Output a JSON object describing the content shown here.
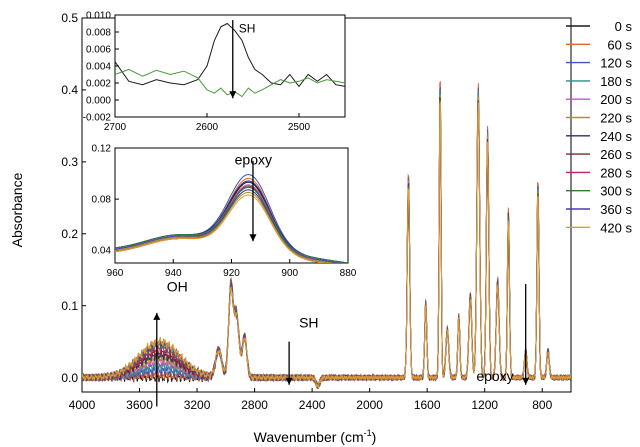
{
  "chart_data": [
    {
      "id": "main",
      "type": "line",
      "xlabel": "Wavenumber (cm",
      "xlabel_sup": "-1",
      "xlabel_close": ")",
      "ylabel": "Absorbance",
      "xlim": [
        4000,
        600
      ],
      "ylim": [
        -0.02,
        0.5
      ],
      "x_reversed": true,
      "x_ticks": [
        4000,
        3600,
        3200,
        2800,
        2400,
        2000,
        1600,
        1200,
        800
      ],
      "x_tick_labels": [
        "4000",
        "3600",
        "3200",
        "2800",
        "2400",
        "2000",
        "1600",
        "1200",
        "800"
      ],
      "y_ticks": [
        0.0,
        0.1,
        0.2,
        0.3,
        0.4,
        0.5
      ],
      "y_tick_labels": [
        "0.0",
        "0.1",
        "0.2",
        "0.3",
        "0.4",
        "0.5"
      ],
      "grid": false,
      "legend_position": "right",
      "series": [
        {
          "name": "0 s",
          "color": "#1a1a1a",
          "oh": 0.0,
          "scale": 0.93
        },
        {
          "name": "60 s",
          "color": "#e2662c",
          "oh": 0.004,
          "scale": 1.0
        },
        {
          "name": "120 s",
          "color": "#3a55c8",
          "oh": 0.01,
          "scale": 0.98
        },
        {
          "name": "180 s",
          "color": "#2a8f87",
          "oh": 0.016,
          "scale": 0.97
        },
        {
          "name": "200 s",
          "color": "#d24fc4",
          "oh": 0.022,
          "scale": 0.96
        },
        {
          "name": "220 s",
          "color": "#a39a1f",
          "oh": 0.027,
          "scale": 0.96
        },
        {
          "name": "240 s",
          "color": "#2b2f6b",
          "oh": 0.031,
          "scale": 0.95
        },
        {
          "name": "260 s",
          "color": "#7a2a2a",
          "oh": 0.035,
          "scale": 0.95
        },
        {
          "name": "280 s",
          "color": "#c81f6e",
          "oh": 0.04,
          "scale": 0.94
        },
        {
          "name": "300 s",
          "color": "#2e7d32",
          "oh": 0.045,
          "scale": 0.94
        },
        {
          "name": "360 s",
          "color": "#4a3cb0",
          "oh": 0.048,
          "scale": 0.93
        },
        {
          "name": "420 s",
          "color": "#e39b2b",
          "oh": 0.05,
          "scale": 0.93
        }
      ],
      "peaks": [
        {
          "x": 3460,
          "y": 0.0,
          "w": 260
        },
        {
          "x": 3050,
          "y": 0.04,
          "w": 30
        },
        {
          "x": 2965,
          "y": 0.13,
          "w": 22
        },
        {
          "x": 2925,
          "y": 0.09,
          "w": 24
        },
        {
          "x": 2870,
          "y": 0.06,
          "w": 22
        },
        {
          "x": 1730,
          "y": 0.29,
          "w": 12
        },
        {
          "x": 1610,
          "y": 0.11,
          "w": 10
        },
        {
          "x": 1510,
          "y": 0.43,
          "w": 9
        },
        {
          "x": 1460,
          "y": 0.07,
          "w": 14
        },
        {
          "x": 1380,
          "y": 0.09,
          "w": 10
        },
        {
          "x": 1300,
          "y": 0.12,
          "w": 14
        },
        {
          "x": 1245,
          "y": 0.41,
          "w": 14
        },
        {
          "x": 1180,
          "y": 0.35,
          "w": 12
        },
        {
          "x": 1110,
          "y": 0.14,
          "w": 14
        },
        {
          "x": 1035,
          "y": 0.24,
          "w": 10
        },
        {
          "x": 915,
          "y": 0.04,
          "w": 12
        },
        {
          "x": 830,
          "y": 0.28,
          "w": 10
        },
        {
          "x": 760,
          "y": 0.04,
          "w": 12
        }
      ],
      "annotations": [
        {
          "text": "OH",
          "at_x": 3480,
          "at_y": 0.12,
          "arrow": "up",
          "arrow_from": -0.04,
          "arrow_to": 0.09
        },
        {
          "text": "SH",
          "at_x": 2560,
          "at_y": 0.07,
          "arrow": "down",
          "arrow_from": 0.05,
          "arrow_to": -0.01
        },
        {
          "text": "epoxy",
          "at_x": 915,
          "at_y": 0.0,
          "arrow": "down",
          "arrow_from": 0.13,
          "arrow_to": -0.01
        }
      ]
    },
    {
      "id": "inset-sh",
      "type": "line",
      "xlim": [
        2700,
        2450
      ],
      "ylim": [
        -0.002,
        0.01
      ],
      "x_reversed": true,
      "x_ticks": [
        2700,
        2600,
        2500
      ],
      "x_tick_labels": [
        "2700",
        "2600",
        "2500"
      ],
      "y_ticks": [
        -0.002,
        0.0,
        0.002,
        0.004,
        0.006,
        0.008,
        0.01
      ],
      "y_tick_labels": [
        "-0.002",
        "0.000",
        "0.002",
        "0.004",
        "0.006",
        "0.008",
        "0.010"
      ],
      "series": [
        {
          "color": "#1a1a1a",
          "x": [
            2700,
            2685,
            2670,
            2655,
            2640,
            2625,
            2610,
            2600,
            2592,
            2585,
            2578,
            2570,
            2562,
            2555,
            2548,
            2540,
            2530,
            2520,
            2510,
            2500,
            2490,
            2480,
            2470,
            2460,
            2450
          ],
          "y": [
            0.0045,
            0.0022,
            0.0018,
            0.0024,
            0.002,
            0.0018,
            0.0024,
            0.004,
            0.007,
            0.0086,
            0.009,
            0.0082,
            0.007,
            0.005,
            0.0036,
            0.003,
            0.002,
            0.0018,
            0.003,
            0.0016,
            0.003,
            0.0022,
            0.003,
            0.0018,
            0.0016
          ]
        },
        {
          "color": "#4a9a3a",
          "x": [
            2700,
            2685,
            2670,
            2655,
            2640,
            2625,
            2610,
            2600,
            2592,
            2585,
            2578,
            2570,
            2562,
            2555,
            2548,
            2540,
            2530,
            2520,
            2510,
            2500,
            2490,
            2480,
            2470,
            2460,
            2450
          ],
          "y": [
            0.003,
            0.0036,
            0.0028,
            0.0035,
            0.003,
            0.0034,
            0.0026,
            0.0012,
            0.0008,
            0.0014,
            0.0006,
            0.001,
            0.0004,
            0.0014,
            0.0008,
            0.0012,
            0.0018,
            0.0024,
            0.002,
            0.0022,
            0.0026,
            0.002,
            0.0024,
            0.0022,
            0.002
          ]
        }
      ],
      "annotations": [
        {
          "text": "SH",
          "at_x": 2572,
          "at_y": 0.0082,
          "arrow": "down",
          "arrow_from": 0.0094,
          "arrow_to": 0.0002
        }
      ]
    },
    {
      "id": "inset-epoxy",
      "type": "line",
      "xlim": [
        960,
        880
      ],
      "ylim": [
        0.03,
        0.12
      ],
      "x_reversed": true,
      "x_ticks": [
        960,
        940,
        920,
        900,
        880
      ],
      "x_tick_labels": [
        "960",
        "940",
        "920",
        "900",
        "880"
      ],
      "y_ticks": [
        0.04,
        0.08,
        0.12
      ],
      "y_tick_labels": [
        "0.04",
        "0.08",
        "0.12"
      ],
      "peak_x": 914,
      "series_peaks": [
        0.094,
        0.092,
        0.09,
        0.088,
        0.089,
        0.087,
        0.086,
        0.085,
        0.084,
        0.083,
        0.082,
        0.081
      ],
      "series_colors": [
        "#3a55c8",
        "#e2662c",
        "#1a1a1a",
        "#7a2a2a",
        "#2b2f6b",
        "#d24fc4",
        "#2a8f87",
        "#c81f6e",
        "#2e7d32",
        "#4a3cb0",
        "#a39a1f",
        "#e39b2b"
      ],
      "annotations": [
        {
          "text": "epoxy",
          "at_x": 910,
          "at_y": 0.107,
          "arrow": "down",
          "arrow_from": 0.11,
          "arrow_to": 0.047
        }
      ]
    }
  ]
}
